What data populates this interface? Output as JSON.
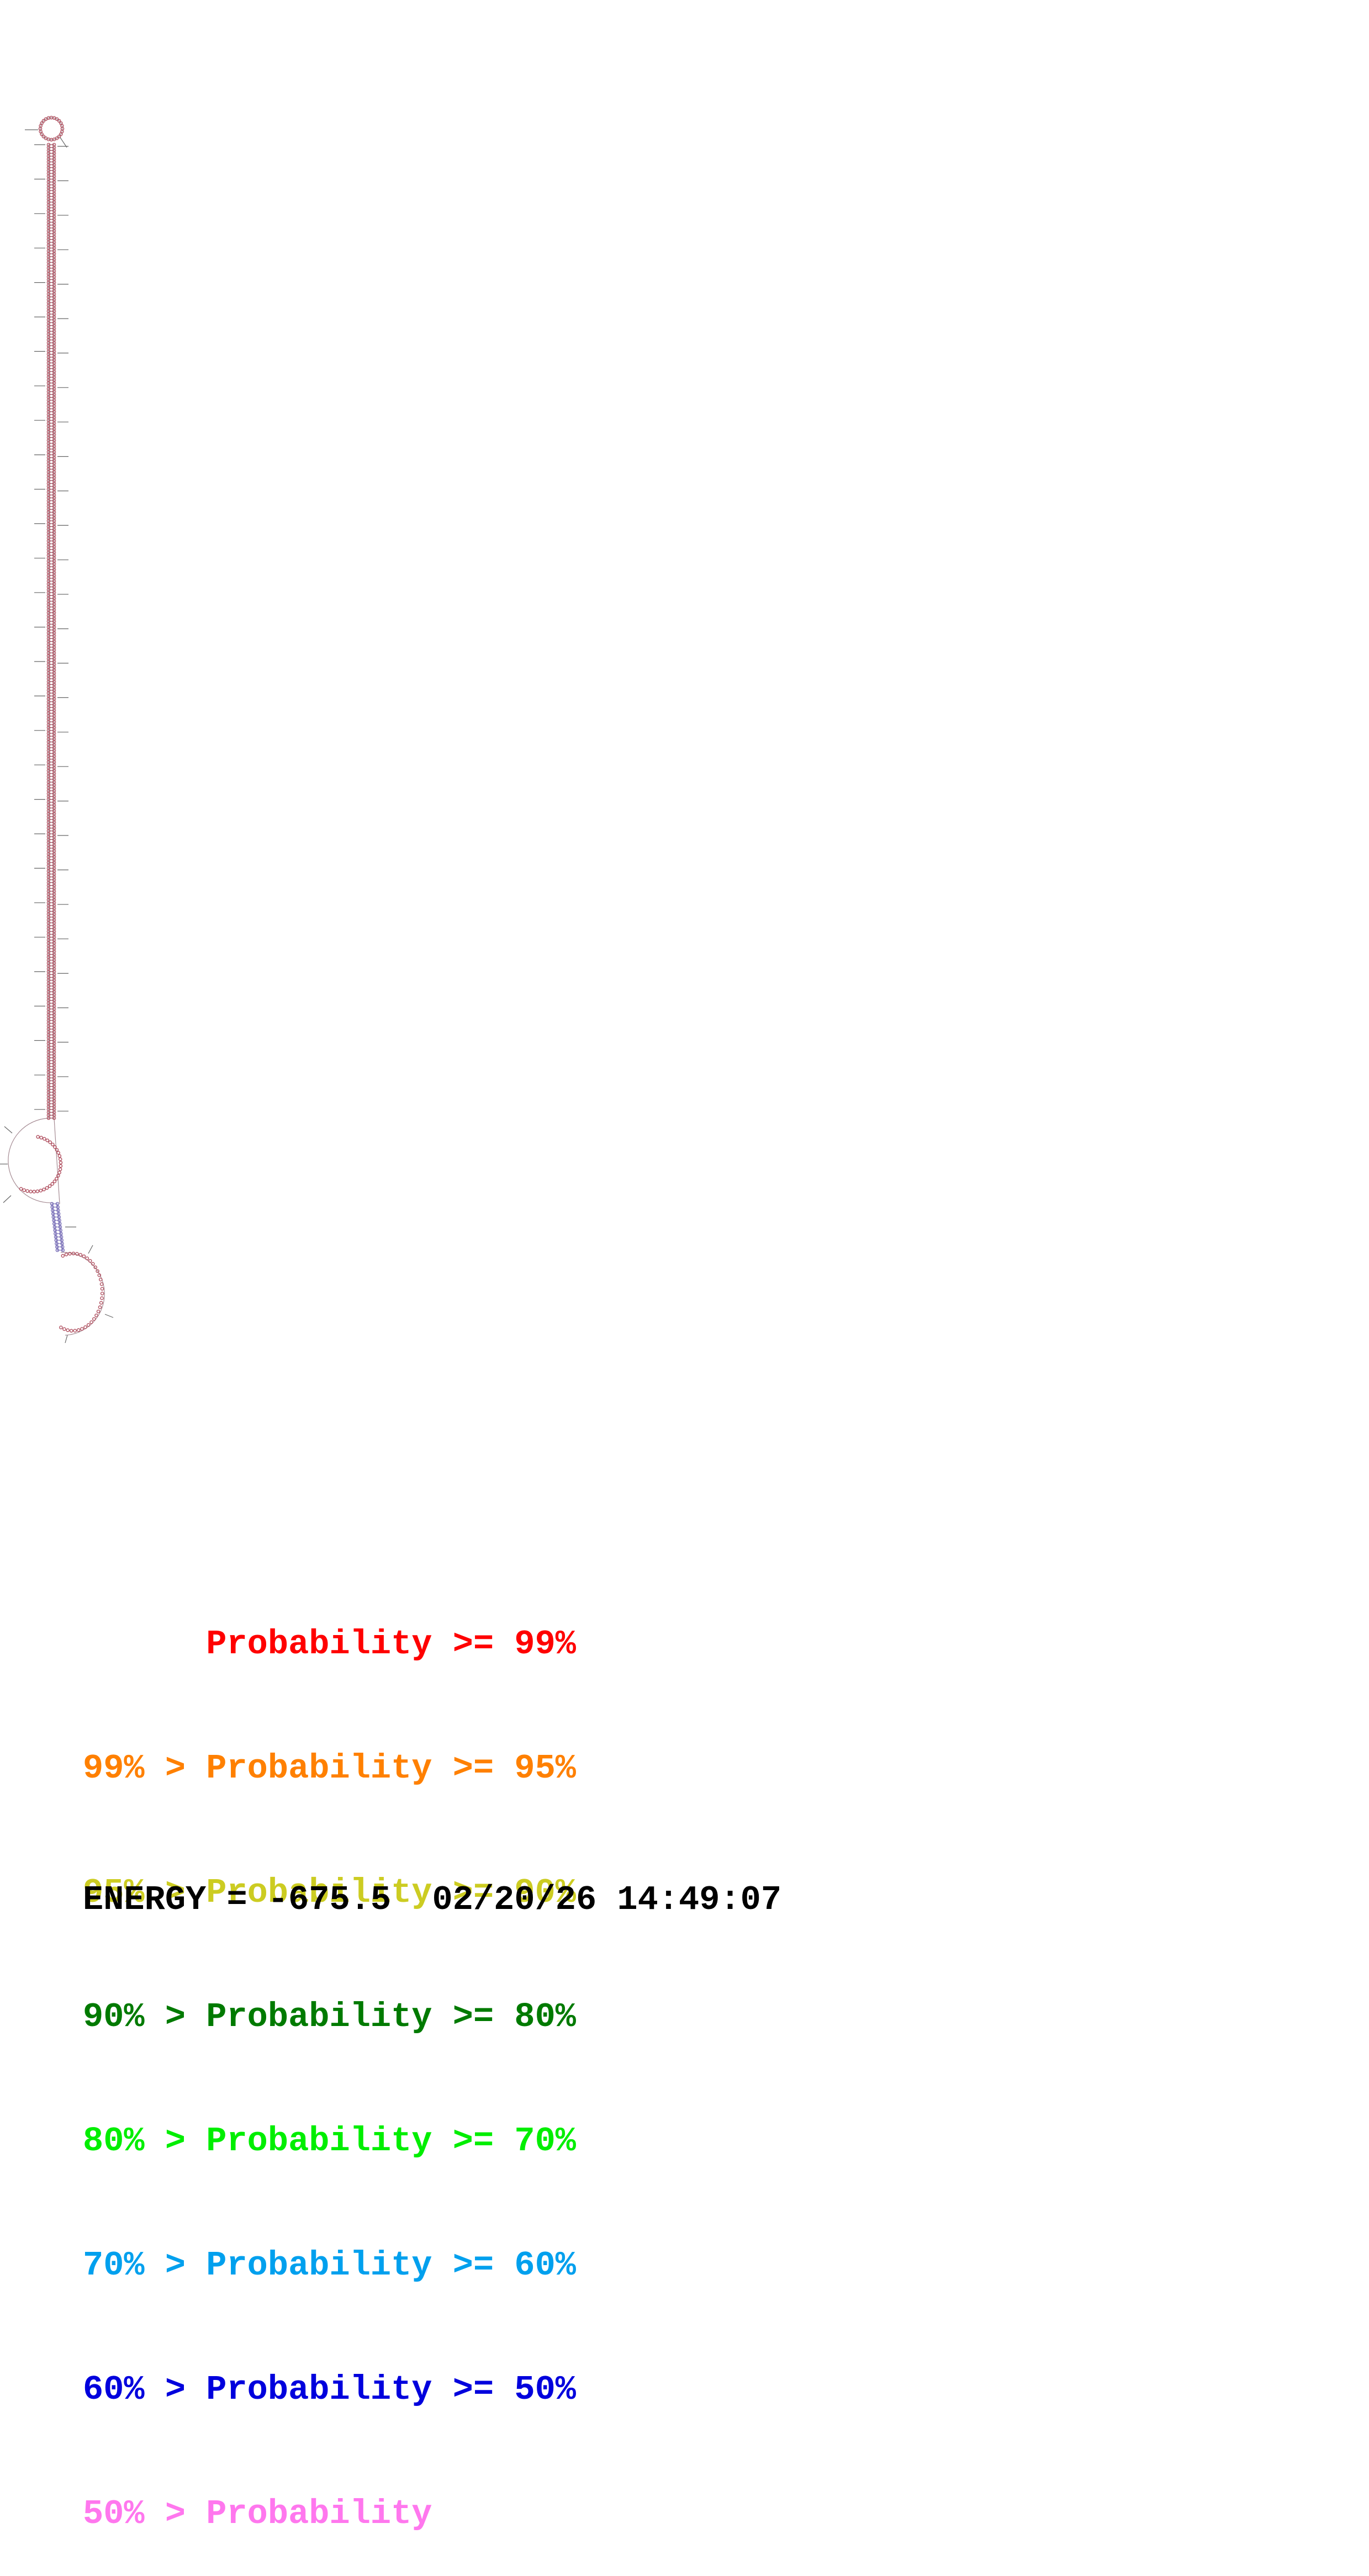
{
  "diagram": {
    "structure_type": "RNA secondary structure (base-pair probability colored)",
    "components": [
      "hairpin loop (top)",
      "long helix stem",
      "multi-loop / internal loop (left)",
      "short helix",
      "exterior loop tail (bottom right)"
    ],
    "colors": {
      "nucleotide": "#b05060",
      "pair": "#8a4a5a",
      "lower_pair": "#7a70b8",
      "backbone": "#a58b93"
    }
  },
  "legend": {
    "rows": [
      {
        "prefix": "",
        "label": "Probability",
        "suffix": ">= 99%",
        "color": "#ff0000"
      },
      {
        "prefix": "99% >",
        "label": "Probability",
        "suffix": ">= 95%",
        "color": "#ff8000"
      },
      {
        "prefix": "95% >",
        "label": "Probability",
        "suffix": ">= 90%",
        "color": "#cccc22"
      },
      {
        "prefix": "90% >",
        "label": "Probability",
        "suffix": ">= 80%",
        "color": "#007a00"
      },
      {
        "prefix": "80% >",
        "label": "Probability",
        "suffix": ">= 70%",
        "color": "#00ee00"
      },
      {
        "prefix": "70% >",
        "label": "Probability",
        "suffix": ">= 60%",
        "color": "#00a0ee"
      },
      {
        "prefix": "60% >",
        "label": "Probability",
        "suffix": ">= 50%",
        "color": "#0000dd"
      },
      {
        "prefix": "50% >",
        "label": "Probability",
        "suffix": "",
        "color": "#ff77ee"
      }
    ]
  },
  "energy": {
    "label": "ENERGY",
    "value": "-675.5",
    "date": "02/20/26",
    "time": "14:49:07"
  }
}
